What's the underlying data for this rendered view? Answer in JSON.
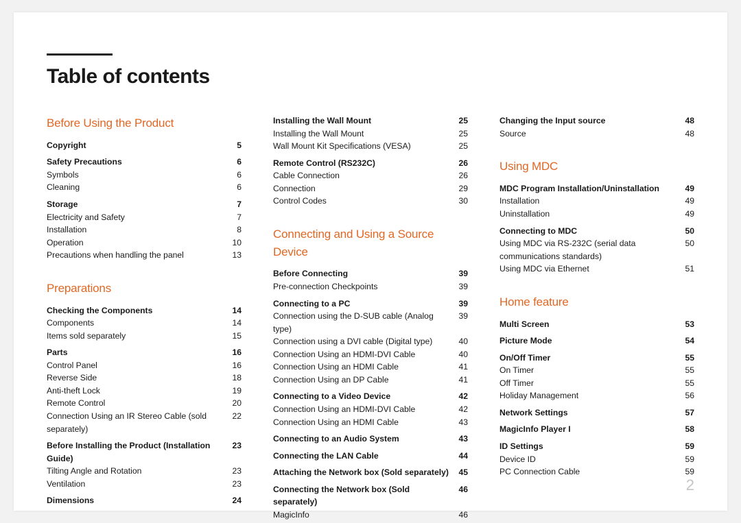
{
  "title": "Table of contents",
  "page_number": "2",
  "colors": {
    "accent": "#e06826",
    "text": "#1a1a1a",
    "page_num": "#c5c5c5",
    "bg": "#ffffff",
    "outer_bg": "#f2f2f2"
  },
  "columns": [
    {
      "groups": [
        {
          "section": "Before Using the Product",
          "blocks": [
            [
              {
                "label": "Copyright",
                "page": "5",
                "bold": true
              }
            ],
            [
              {
                "label": "Safety Precautions",
                "page": "6",
                "bold": true
              },
              {
                "label": "Symbols",
                "page": "6"
              },
              {
                "label": "Cleaning",
                "page": "6"
              }
            ],
            [
              {
                "label": "Storage",
                "page": "7",
                "bold": true
              },
              {
                "label": "Electricity and Safety",
                "page": "7"
              },
              {
                "label": "Installation",
                "page": "8"
              },
              {
                "label": "Operation",
                "page": "10"
              },
              {
                "label": "Precautions when handling the panel",
                "page": "13"
              }
            ]
          ]
        },
        {
          "section": "Preparations",
          "blocks": [
            [
              {
                "label": "Checking the Components",
                "page": "14",
                "bold": true
              },
              {
                "label": "Components",
                "page": "14"
              },
              {
                "label": "Items sold separately",
                "page": "15"
              }
            ],
            [
              {
                "label": "Parts",
                "page": "16",
                "bold": true
              },
              {
                "label": "Control Panel",
                "page": "16"
              },
              {
                "label": "Reverse Side",
                "page": "18"
              },
              {
                "label": "Anti-theft Lock",
                "page": "19"
              },
              {
                "label": "Remote Control",
                "page": "20"
              },
              {
                "label": "Connection Using an IR Stereo Cable (sold separately)",
                "page": "22"
              }
            ],
            [
              {
                "label": "Before Installing the Product (Installation Guide)",
                "page": "23",
                "bold": true
              },
              {
                "label": "Tilting Angle and Rotation",
                "page": "23"
              },
              {
                "label": "Ventilation",
                "page": "23"
              }
            ],
            [
              {
                "label": "Dimensions",
                "page": "24",
                "bold": true
              }
            ]
          ]
        }
      ]
    },
    {
      "groups": [
        {
          "blocks": [
            [
              {
                "label": "Installing the Wall Mount",
                "page": "25",
                "bold": true
              },
              {
                "label": "Installing the Wall Mount",
                "page": "25"
              },
              {
                "label": "Wall Mount Kit Specifications (VESA)",
                "page": "25"
              }
            ],
            [
              {
                "label": "Remote Control (RS232C)",
                "page": "26",
                "bold": true
              },
              {
                "label": "Cable Connection",
                "page": "26"
              },
              {
                "label": "Connection",
                "page": "29"
              },
              {
                "label": "Control Codes",
                "page": "30"
              }
            ]
          ]
        },
        {
          "section": "Connecting and Using a Source Device",
          "blocks": [
            [
              {
                "label": "Before Connecting",
                "page": "39",
                "bold": true
              },
              {
                "label": "Pre-connection Checkpoints",
                "page": "39"
              }
            ],
            [
              {
                "label": "Connecting to a PC",
                "page": "39",
                "bold": true
              },
              {
                "label": "Connection using the D-SUB cable (Analog type)",
                "page": "39"
              },
              {
                "label": "Connection using a DVI cable (Digital type)",
                "page": "40"
              },
              {
                "label": "Connection Using an HDMI-DVI Cable",
                "page": "40"
              },
              {
                "label": "Connection Using an HDMI Cable",
                "page": "41"
              },
              {
                "label": "Connection Using an DP Cable",
                "page": "41"
              }
            ],
            [
              {
                "label": "Connecting to a Video Device",
                "page": "42",
                "bold": true
              },
              {
                "label": "Connection Using an HDMI-DVI Cable",
                "page": "42"
              },
              {
                "label": "Connection Using an HDMI Cable",
                "page": "43"
              }
            ],
            [
              {
                "label": "Connecting to an Audio System",
                "page": "43",
                "bold": true
              }
            ],
            [
              {
                "label": "Connecting the LAN Cable",
                "page": "44",
                "bold": true
              }
            ],
            [
              {
                "label": "Attaching the Network box (Sold separately)",
                "page": "45",
                "bold": true
              }
            ],
            [
              {
                "label": "Connecting the Network box (Sold separately)",
                "page": "46",
                "bold": true
              },
              {
                "label": "MagicInfo",
                "page": "46"
              }
            ]
          ]
        }
      ]
    },
    {
      "groups": [
        {
          "blocks": [
            [
              {
                "label": "Changing the Input source",
                "page": "48",
                "bold": true
              },
              {
                "label": "Source",
                "page": "48"
              }
            ]
          ]
        },
        {
          "section": "Using MDC",
          "blocks": [
            [
              {
                "label": "MDC Program Installation/Uninstallation",
                "page": "49",
                "bold": true
              },
              {
                "label": "Installation",
                "page": "49"
              },
              {
                "label": "Uninstallation",
                "page": "49"
              }
            ],
            [
              {
                "label": "Connecting to MDC",
                "page": "50",
                "bold": true
              },
              {
                "label": "Using MDC via RS-232C (serial data communications standards)",
                "page": "50"
              },
              {
                "label": "Using MDC via Ethernet",
                "page": "51"
              }
            ]
          ]
        },
        {
          "section": "Home feature",
          "blocks": [
            [
              {
                "label": "Multi Screen",
                "page": "53",
                "bold": true
              }
            ],
            [
              {
                "label": "Picture Mode",
                "page": "54",
                "bold": true
              }
            ],
            [
              {
                "label": "On/Off Timer",
                "page": "55",
                "bold": true
              },
              {
                "label": "On Timer",
                "page": "55"
              },
              {
                "label": "Off Timer",
                "page": "55"
              },
              {
                "label": "Holiday Management",
                "page": "56"
              }
            ],
            [
              {
                "label": "Network Settings",
                "page": "57",
                "bold": true
              }
            ],
            [
              {
                "label": "MagicInfo Player I",
                "page": "58",
                "bold": true
              }
            ],
            [
              {
                "label": "ID Settings",
                "page": "59",
                "bold": true
              },
              {
                "label": "Device ID",
                "page": "59"
              },
              {
                "label": "PC Connection Cable",
                "page": "59"
              }
            ]
          ]
        }
      ]
    }
  ]
}
